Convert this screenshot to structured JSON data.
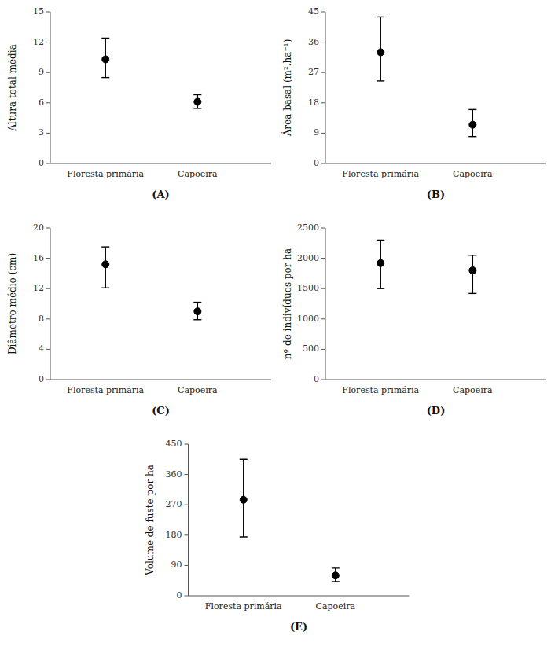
{
  "chart_data": [
    {
      "type": "errorbar",
      "xlabel": "(A)",
      "ylabel": "Altura total média",
      "categories": [
        "Floresta primária",
        "Capoeira"
      ],
      "values": [
        10.3,
        6.1
      ],
      "error_upper": [
        2.1,
        0.7
      ],
      "error_lower": [
        1.8,
        0.65
      ],
      "ylim": [
        0,
        15
      ],
      "yticks": [
        0,
        3,
        6,
        9,
        12,
        15
      ],
      "color": "black",
      "marker": "circle"
    },
    {
      "type": "errorbar",
      "xlabel": "(B)",
      "ylabel": "Área basal (m².ha⁻¹)",
      "categories": [
        "Floresta primária",
        "Capoeira"
      ],
      "values": [
        33.0,
        11.5
      ],
      "error_upper": [
        10.5,
        4.5
      ],
      "error_lower": [
        8.5,
        3.5
      ],
      "ylim": [
        0,
        45
      ],
      "yticks": [
        0,
        9,
        18,
        27,
        36,
        45
      ],
      "color": "black",
      "marker": "circle"
    },
    {
      "type": "errorbar",
      "xlabel": "(C)",
      "ylabel": "Diâmetro médio (cm)",
      "categories": [
        "Floresta primária",
        "Capoeira"
      ],
      "values": [
        15.2,
        9.0
      ],
      "error_upper": [
        2.3,
        1.2
      ],
      "error_lower": [
        3.1,
        1.1
      ],
      "ylim": [
        0,
        20
      ],
      "yticks": [
        0,
        4,
        8,
        12,
        16,
        20
      ],
      "color": "black",
      "marker": "circle"
    },
    {
      "type": "errorbar",
      "xlabel": "(D)",
      "ylabel": "nº de indivíduos por ha",
      "categories": [
        "Floresta primária",
        "Capoeira"
      ],
      "values": [
        1920,
        1800
      ],
      "error_upper": [
        380,
        250
      ],
      "error_lower": [
        420,
        380
      ],
      "ylim": [
        0,
        2500
      ],
      "yticks": [
        0,
        500,
        1000,
        1500,
        2000,
        2500
      ],
      "color": "black",
      "marker": "circle"
    },
    {
      "type": "errorbar",
      "xlabel": "(E)",
      "ylabel": "Volume de fuste por ha",
      "categories": [
        "Floresta primária",
        "Capoeira"
      ],
      "values": [
        285,
        60
      ],
      "error_upper": [
        120,
        22
      ],
      "error_lower": [
        110,
        18
      ],
      "ylim": [
        0,
        450
      ],
      "yticks": [
        0,
        90,
        180,
        270,
        360,
        450
      ],
      "color": "black",
      "marker": "circle"
    }
  ]
}
